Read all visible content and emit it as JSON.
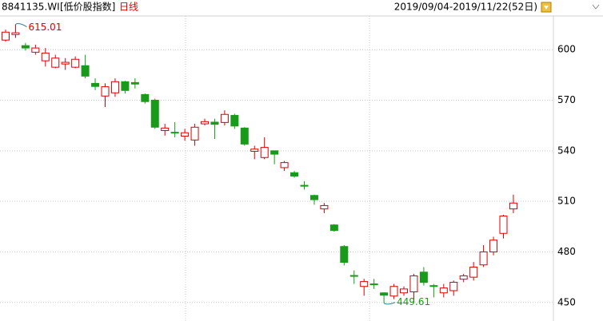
{
  "chart_data": {
    "type": "candlestick",
    "title": "8841135.WI",
    "subtitle": "[低价股指数]",
    "period": "日线",
    "date_range": "2019/09/04-2019/11/22(52日)",
    "open": [
      605.7,
      609,
      602.4,
      598.5,
      593.4,
      589.6,
      591.5,
      589.6,
      590.5,
      580,
      572.5,
      574.4,
      581,
      580.5,
      573.4,
      570,
      552,
      551,
      548.7,
      546.4,
      556,
      557,
      556.8,
      561,
      553.5,
      539.7,
      536,
      540,
      530,
      527,
      519.5,
      513.5,
      505.5,
      496,
      483.2,
      466,
      459.5,
      461,
      455.7,
      453.8,
      455.7,
      456.3,
      468,
      460,
      455.7,
      457,
      463.8,
      465,
      472.3,
      480,
      491,
      505.5
    ],
    "high": [
      611.9,
      615.01,
      604,
      603,
      601,
      597,
      595,
      596,
      597,
      583,
      580,
      583,
      581.5,
      583,
      574,
      571,
      556,
      557,
      553,
      556,
      559,
      559,
      564,
      562,
      554,
      543,
      548,
      540,
      534,
      528,
      522,
      514,
      509,
      496.5,
      484,
      469,
      464,
      464,
      456,
      461,
      459.5,
      467,
      471,
      461,
      461,
      463,
      467,
      474,
      484,
      489,
      502,
      514
    ],
    "low": [
      604.7,
      607,
      599.5,
      597,
      590,
      589,
      588,
      589,
      583,
      576,
      566,
      572,
      574,
      577,
      568,
      553,
      549,
      548,
      546,
      543,
      555,
      547,
      555,
      553,
      543,
      535,
      535,
      532,
      528,
      524,
      517,
      508,
      503,
      492,
      472,
      461,
      454,
      458,
      449.61,
      452,
      454,
      451,
      460,
      453,
      453,
      454,
      462,
      463,
      471,
      478,
      488,
      503
    ],
    "close": [
      610.4,
      610,
      601,
      601,
      598,
      595,
      592.5,
      594.3,
      584.3,
      578.2,
      578,
      581,
      575.8,
      579.6,
      569.2,
      554,
      553.5,
      550.5,
      550.7,
      554,
      557.3,
      555.7,
      561.6,
      554.7,
      544,
      541,
      542,
      538,
      533,
      525,
      519,
      511,
      507.5,
      492.7,
      473.8,
      465.8,
      462.4,
      460.5,
      454.3,
      459.5,
      458,
      465.8,
      461.9,
      459.5,
      458.6,
      462,
      465.8,
      471,
      480,
      487,
      501.3,
      509
    ],
    "up_color": "#e00000",
    "down_color": "#1a9a1a",
    "ylim": [
      439,
      620
    ],
    "yticks": [
      450,
      480,
      510,
      540,
      570,
      600
    ],
    "grid": true
  }
}
